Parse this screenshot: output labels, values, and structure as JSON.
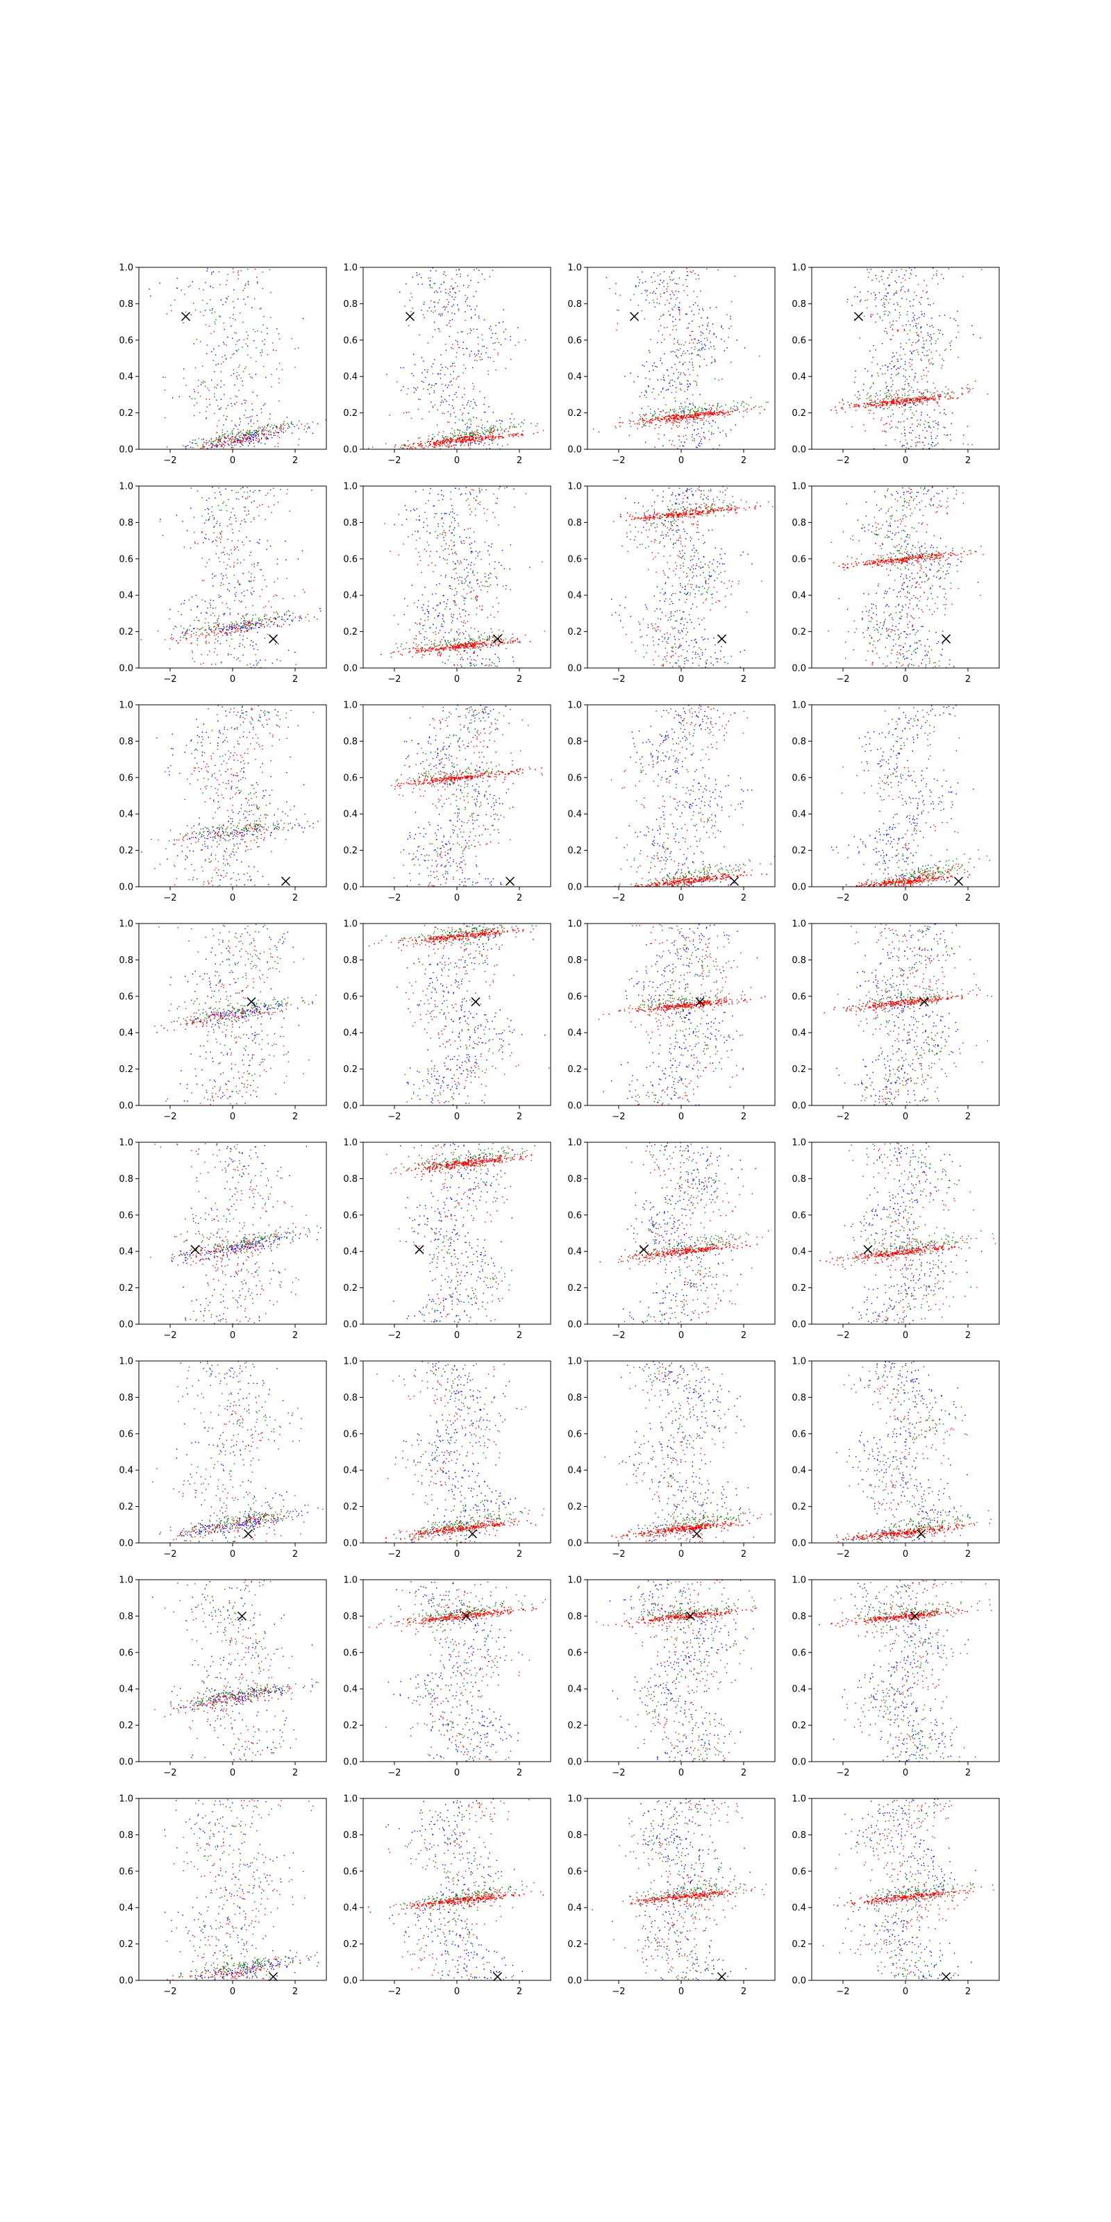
{
  "figure": {
    "grid_rows": 8,
    "grid_cols": 4,
    "colors": {
      "blue": "#0000ff",
      "green": "#008000",
      "red": "#ff0000",
      "marker": "#000000"
    }
  },
  "chart_data": {
    "type": "scatter",
    "layout": "8x4 grid of scatter subplots sharing axes",
    "xlim": [
      -3,
      3
    ],
    "ylim": [
      0,
      1
    ],
    "x_ticks": [
      -2,
      0,
      2
    ],
    "y_ticks": [
      0.0,
      0.2,
      0.4,
      0.6,
      0.8,
      1.0
    ],
    "x_tick_labels": [
      "−2",
      "0",
      "2"
    ],
    "y_tick_labels": [
      "0.0",
      "0.2",
      "0.4",
      "0.6",
      "0.8",
      "1.0"
    ],
    "series_colors": [
      "blue",
      "green",
      "red"
    ],
    "marker_symbol": "x",
    "rows": [
      {
        "marker": [
          -1.5,
          0.73
        ],
        "bands": [
          [
            0.05,
            0.0,
            0.6,
            0.55
          ],
          [
            0.05,
            0.15,
            0.5,
            0.55
          ],
          [
            0.18,
            0.16,
            0.4,
            0.45
          ],
          [
            0.27,
            0.18,
            0.3,
            0.3
          ]
        ]
      },
      {
        "marker": [
          1.3,
          0.16
        ],
        "bands": [
          [
            0.22,
            0.16,
            0.45,
            0.4
          ],
          [
            0.12,
            0.14,
            0.3,
            0.35
          ],
          [
            0.85,
            0.12,
            0.25,
            0.25
          ],
          [
            0.6,
            0.1,
            0.2,
            0.2
          ]
        ]
      },
      {
        "marker": [
          1.7,
          0.03
        ],
        "bands": [
          [
            0.3,
            0.15,
            0.3,
            0.3
          ],
          [
            0.6,
            0.14,
            0.25,
            0.25
          ],
          [
            0.03,
            0.05,
            0.6,
            0.45
          ],
          [
            0.03,
            0.06,
            0.7,
            0.6
          ]
        ]
      },
      {
        "marker": [
          0.6,
          0.57
        ],
        "bands": [
          [
            0.5,
            0.14,
            0.5,
            0.45
          ],
          [
            0.93,
            0.15,
            0.35,
            0.4
          ],
          [
            0.55,
            0.12,
            0.35,
            0.3
          ],
          [
            0.57,
            0.08,
            0.3,
            0.25
          ]
        ]
      },
      {
        "marker": [
          -1.2,
          0.41
        ],
        "bands": [
          [
            0.42,
            0.14,
            0.55,
            0.5
          ],
          [
            0.88,
            0.16,
            0.4,
            0.45
          ],
          [
            0.4,
            0.06,
            0.55,
            0.35
          ],
          [
            0.4,
            0.05,
            0.5,
            0.35
          ]
        ]
      },
      {
        "marker": [
          0.5,
          0.05
        ],
        "bands": [
          [
            0.1,
            0.15,
            0.5,
            0.5
          ],
          [
            0.08,
            0.08,
            0.55,
            0.45
          ],
          [
            0.08,
            0.08,
            0.5,
            0.45
          ],
          [
            0.06,
            0.07,
            0.45,
            0.4
          ]
        ]
      },
      {
        "marker": [
          0.3,
          0.8
        ],
        "bands": [
          [
            0.35,
            0.15,
            0.5,
            0.5
          ],
          [
            0.8,
            0.14,
            0.4,
            0.4
          ],
          [
            0.8,
            0.12,
            0.35,
            0.3
          ],
          [
            0.8,
            0.1,
            0.3,
            0.28
          ]
        ]
      },
      {
        "marker": [
          1.3,
          0.02
        ],
        "bands": [
          [
            0.05,
            0.14,
            0.45,
            0.45
          ],
          [
            0.44,
            0.14,
            0.4,
            0.4
          ],
          [
            0.46,
            0.12,
            0.3,
            0.3
          ],
          [
            0.46,
            0.1,
            0.3,
            0.28
          ]
        ]
      }
    ]
  }
}
